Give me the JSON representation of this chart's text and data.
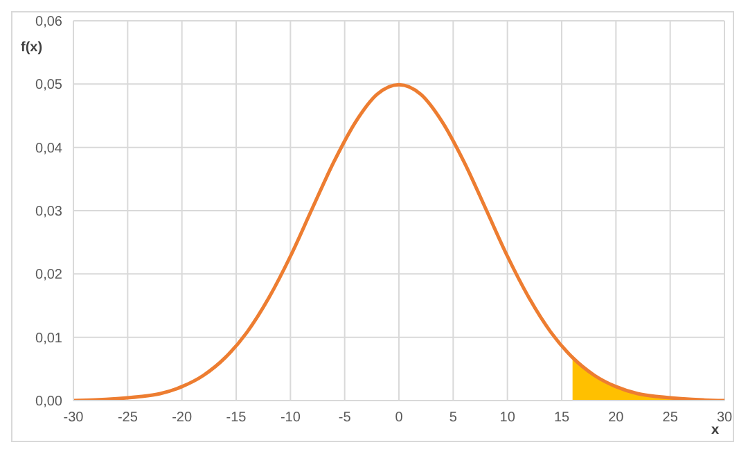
{
  "chart_data": {
    "type": "line",
    "xlabel": "x",
    "ylabel": "f(x)",
    "xlim": [
      -30,
      30
    ],
    "xticks": [
      -30,
      -25,
      -20,
      -15,
      -10,
      -5,
      0,
      5,
      10,
      15,
      20,
      25,
      30
    ],
    "ylim": [
      0,
      0.06
    ],
    "yticks": [
      {
        "value": 0,
        "label": "0,00"
      },
      {
        "value": 0.01,
        "label": "0,01"
      },
      {
        "value": 0.02,
        "label": "0,02"
      },
      {
        "value": 0.03,
        "label": "0,03"
      },
      {
        "value": 0.04,
        "label": "0,04"
      },
      {
        "value": 0.05,
        "label": "0,05"
      },
      {
        "value": 0.06,
        "label": "0,06"
      }
    ],
    "grid": true,
    "legend": false,
    "marker": "none",
    "line_style": "solid",
    "series": [
      {
        "type": "area",
        "color": "#ffc000",
        "x": [
          16,
          18,
          20,
          22,
          24,
          26,
          28,
          30
        ],
        "values": [
          0.0068,
          0.004,
          0.0022,
          0.0011,
          0.0006,
          0.0003,
          0.0001,
          0
        ]
      },
      {
        "color": "#ed7d31",
        "x": [
          -30,
          -28,
          -26,
          -24,
          -22,
          -20,
          -18,
          -16,
          -14,
          -12,
          -10,
          -8,
          -6,
          -4,
          -2,
          0,
          2,
          4,
          6,
          8,
          10,
          12,
          14,
          16,
          18,
          20,
          22,
          24,
          26,
          28,
          30
        ],
        "values": [
          0,
          0.0001,
          0.0003,
          0.0006,
          0.0011,
          0.0022,
          0.004,
          0.0068,
          0.0108,
          0.0162,
          0.0228,
          0.0303,
          0.0377,
          0.044,
          0.0484,
          0.0499,
          0.0484,
          0.044,
          0.0377,
          0.0303,
          0.0228,
          0.0162,
          0.0108,
          0.0068,
          0.004,
          0.0022,
          0.0011,
          0.0006,
          0.0003,
          0.0001,
          0
        ]
      }
    ]
  }
}
